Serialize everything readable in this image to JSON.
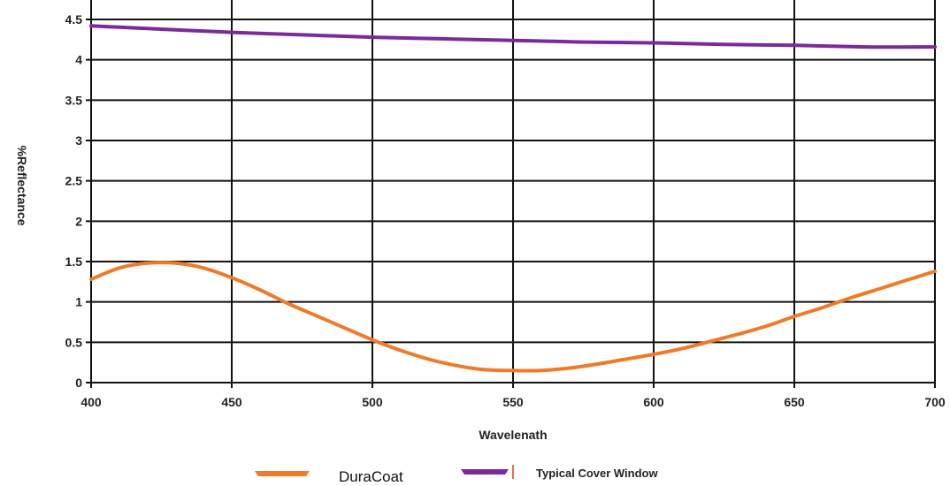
{
  "chart_data": {
    "type": "line",
    "title": "",
    "xlabel": "Wavelenath",
    "ylabel": "%Reflectance",
    "xlim": [
      400,
      700
    ],
    "ylim": [
      0,
      4.5
    ],
    "xticks": [
      400,
      450,
      500,
      550,
      600,
      650,
      700
    ],
    "yticks": [
      0,
      0.5,
      1,
      1.5,
      2,
      2.5,
      3,
      3.5,
      4,
      4.5
    ],
    "xtick_labels": [
      "400",
      "450",
      "500",
      "550",
      "600",
      "650",
      "700"
    ],
    "ytick_labels": [
      "0",
      "0.5",
      "1",
      "1.5",
      "2",
      "2.5",
      "3",
      "3.5",
      "4",
      "4.5"
    ],
    "grid": true,
    "legend_position": "bottom",
    "series": [
      {
        "name": "DuraCoat",
        "color": "#f07a28",
        "x": [
          400,
          410,
          420,
          430,
          440,
          450,
          460,
          470,
          480,
          490,
          500,
          510,
          520,
          530,
          540,
          550,
          560,
          570,
          580,
          590,
          600,
          610,
          620,
          630,
          640,
          650,
          660,
          670,
          680,
          690,
          700
        ],
        "y": [
          1.28,
          1.42,
          1.48,
          1.48,
          1.42,
          1.3,
          1.15,
          0.98,
          0.83,
          0.68,
          0.53,
          0.4,
          0.29,
          0.21,
          0.16,
          0.15,
          0.15,
          0.18,
          0.23,
          0.29,
          0.35,
          0.42,
          0.51,
          0.6,
          0.7,
          0.82,
          0.93,
          1.05,
          1.16,
          1.27,
          1.38
        ]
      },
      {
        "name": "Typical Cover Window",
        "color": "#7a2a9a",
        "x": [
          400,
          425,
          450,
          475,
          500,
          525,
          550,
          575,
          600,
          625,
          650,
          675,
          700
        ],
        "y": [
          4.42,
          4.38,
          4.34,
          4.31,
          4.28,
          4.26,
          4.24,
          4.22,
          4.21,
          4.19,
          4.18,
          4.16,
          4.16
        ]
      }
    ]
  },
  "legend": {
    "items": [
      {
        "label": "DuraCoat"
      },
      {
        "label": "Typical Cover Window"
      }
    ]
  }
}
